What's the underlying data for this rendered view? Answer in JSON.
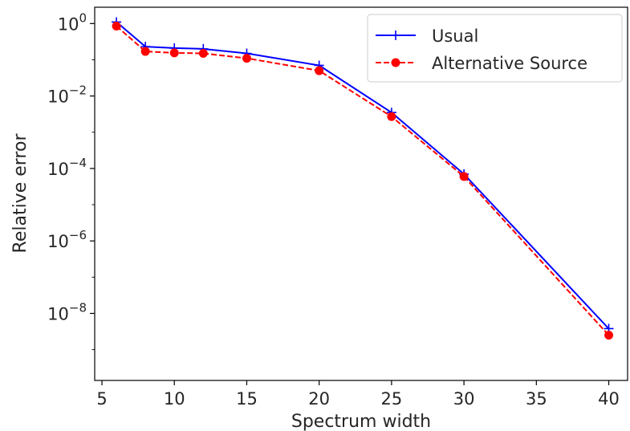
{
  "chart_data": {
    "type": "line",
    "xlabel": "Spectrum width",
    "ylabel": "Relative error",
    "xlim": [
      4.5,
      41.3
    ],
    "ylim_exp": [
      -9.85,
      0.45
    ],
    "yscale": "log",
    "x_ticks": [
      5,
      10,
      15,
      20,
      25,
      30,
      35,
      40
    ],
    "y_ticks": [
      {
        "exp": 0,
        "base": "10",
        "sup": "0"
      },
      {
        "exp": -2,
        "base": "10",
        "sup": "−2"
      },
      {
        "exp": -4,
        "base": "10",
        "sup": "−4"
      },
      {
        "exp": -6,
        "base": "10",
        "sup": "−6"
      },
      {
        "exp": -8,
        "base": "10",
        "sup": "−8"
      }
    ],
    "legend_position": "top-right",
    "series": [
      {
        "name": "Usual",
        "color": "#0000ff",
        "style": "solid",
        "marker": "plus",
        "x": [
          6,
          8,
          10,
          12,
          15,
          20,
          25,
          30,
          40
        ],
        "y": [
          1.1,
          0.23,
          0.21,
          0.2,
          0.15,
          0.07,
          0.0035,
          7e-05,
          3.8e-09
        ]
      },
      {
        "name": "Alternative Source",
        "color": "#ff0000",
        "style": "dashed",
        "marker": "circle",
        "x": [
          6,
          8,
          10,
          12,
          15,
          20,
          25,
          30,
          40
        ],
        "y": [
          0.85,
          0.17,
          0.155,
          0.15,
          0.11,
          0.05,
          0.0027,
          6e-05,
          2.5e-09
        ]
      }
    ]
  }
}
